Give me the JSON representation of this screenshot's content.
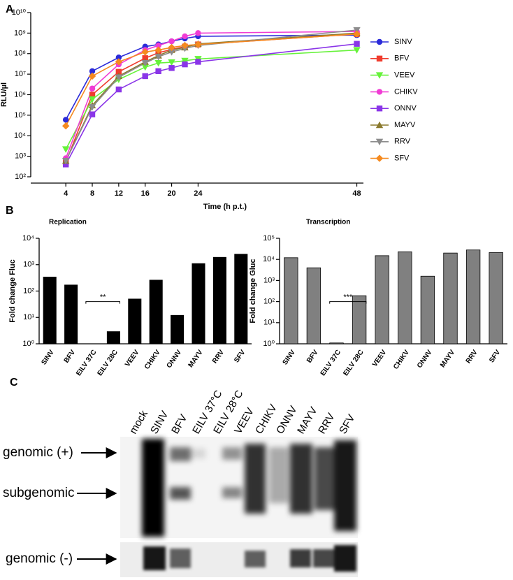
{
  "chart_data": [
    {
      "type": "line",
      "panel": "A",
      "xlabel": "Time (h p.t.)",
      "ylabel": "RLU/µl",
      "yscale": "log",
      "ylim": [
        100,
        10000000000
      ],
      "yticks": [
        {
          "value": 100,
          "label": "10²"
        },
        {
          "value": 1000,
          "label": "10³"
        },
        {
          "value": 10000,
          "label": "10⁴"
        },
        {
          "value": 100000,
          "label": "10⁵"
        },
        {
          "value": 1000000,
          "label": "10⁶"
        },
        {
          "value": 10000000,
          "label": "10⁷"
        },
        {
          "value": 100000000,
          "label": "10⁸"
        },
        {
          "value": 1000000000,
          "label": "10⁹"
        },
        {
          "value": 10000000000,
          "label": "10¹⁰"
        }
      ],
      "xlim": [
        -1.3,
        49
      ],
      "xticks": [
        4,
        8,
        12,
        16,
        20,
        24,
        48
      ],
      "x": [
        4,
        8,
        12,
        16,
        18,
        20,
        22,
        24,
        48
      ],
      "legend": "right",
      "series": [
        {
          "name": "SINV",
          "color": "#2b2bd9",
          "marker": "circle",
          "values": [
            60000,
            14000000,
            65000000,
            220000000,
            280000000,
            400000000,
            550000000,
            700000000,
            800000000
          ]
        },
        {
          "name": "BFV",
          "color": "#f03c2e",
          "marker": "square",
          "values": [
            500,
            1000000,
            13000000,
            60000000,
            110000000,
            160000000,
            220000000,
            280000000,
            900000000
          ]
        },
        {
          "name": "VEEV",
          "color": "#66f23a",
          "marker": "triangle-down",
          "values": [
            2200,
            600000,
            5500000,
            22000000,
            35000000,
            38000000,
            45000000,
            55000000,
            150000000
          ]
        },
        {
          "name": "CHIKV",
          "color": "#f03cd4",
          "marker": "circle",
          "values": [
            800,
            2000000,
            30000000,
            150000000,
            250000000,
            400000000,
            700000000,
            1000000000,
            1200000000
          ]
        },
        {
          "name": "ONNV",
          "color": "#8a35e8",
          "marker": "square",
          "values": [
            400,
            110000,
            1800000,
            8000000,
            14000000,
            20000000,
            30000000,
            40000000,
            300000000
          ]
        },
        {
          "name": "MAYV",
          "color": "#8b7a2e",
          "marker": "triangle-up",
          "values": [
            600,
            300000,
            8000000,
            40000000,
            80000000,
            150000000,
            200000000,
            300000000,
            1000000000
          ]
        },
        {
          "name": "RRV",
          "color": "#8c8c8c",
          "marker": "triangle-down",
          "values": [
            600,
            250000,
            7000000,
            35000000,
            70000000,
            120000000,
            180000000,
            250000000,
            1400000000
          ]
        },
        {
          "name": "SFV",
          "color": "#f58a1f",
          "marker": "diamond",
          "values": [
            30000,
            8000000,
            40000000,
            120000000,
            150000000,
            200000000,
            250000000,
            280000000,
            900000000
          ]
        }
      ]
    },
    {
      "type": "bar",
      "panel": "B",
      "title": "Replication",
      "ylabel": "Fold change Fluc",
      "color": "#000000",
      "yscale": "log",
      "ylim": [
        1,
        10000
      ],
      "yticks": [
        {
          "value": 1,
          "label": "10⁰"
        },
        {
          "value": 10,
          "label": "10¹"
        },
        {
          "value": 100,
          "label": "10²"
        },
        {
          "value": 1000,
          "label": "10³"
        },
        {
          "value": 10000,
          "label": "10⁴"
        }
      ],
      "categories": [
        "SINV",
        "BFV",
        "EILV 37C",
        "EILV 28C",
        "VEEV",
        "CHIKV",
        "ONNV",
        "MAYV",
        "RRV",
        "SFV"
      ],
      "values": [
        340,
        170,
        null,
        2.9,
        50,
        260,
        12,
        1100,
        1900,
        2500
      ],
      "annotation": "**"
    },
    {
      "type": "bar",
      "title": "Transcription",
      "ylabel": "Fold change Gluc",
      "color": "#808080",
      "yscale": "log",
      "ylim": [
        1,
        100000
      ],
      "yticks": [
        {
          "value": 1,
          "label": "10⁰"
        },
        {
          "value": 10,
          "label": "10¹"
        },
        {
          "value": 100,
          "label": "10²"
        },
        {
          "value": 1000,
          "label": "10³"
        },
        {
          "value": 10000,
          "label": "10⁴"
        },
        {
          "value": 100000,
          "label": "10⁵"
        }
      ],
      "categories": [
        "SINV",
        "BFV",
        "EILV 37C",
        "EILV 28C",
        "VEEV",
        "CHIKV",
        "ONNV",
        "MAYV",
        "RRV",
        "SFV"
      ],
      "values": [
        12000,
        4000,
        1.1,
        190,
        15000,
        23000,
        1600,
        20000,
        28000,
        21000
      ],
      "annotation": "***"
    }
  ],
  "blot": {
    "panel": "C",
    "lanes": [
      "mock",
      "SINV",
      "BFV",
      "EILV 37°C",
      "EILV 28°C",
      "VEEV",
      "CHIKV",
      "ONNV",
      "MAYV",
      "RRV",
      "SFV"
    ],
    "rows": [
      "genomic (+)",
      "subgenomic",
      "genomic (-)"
    ]
  }
}
